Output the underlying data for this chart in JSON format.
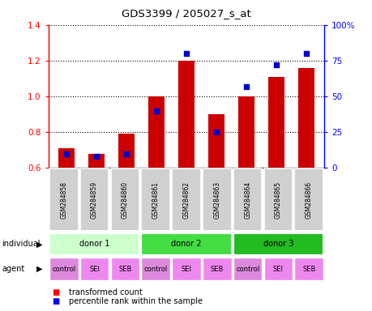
{
  "title": "GDS3399 / 205027_s_at",
  "samples": [
    "GSM284858",
    "GSM284859",
    "GSM284860",
    "GSM284861",
    "GSM284862",
    "GSM284863",
    "GSM284864",
    "GSM284865",
    "GSM284866"
  ],
  "transformed_count": [
    0.71,
    0.68,
    0.79,
    1.0,
    1.2,
    0.9,
    1.0,
    1.11,
    1.16
  ],
  "percentile_rank": [
    10,
    8,
    10,
    40,
    80,
    25,
    57,
    72,
    80
  ],
  "ylim_left": [
    0.6,
    1.4
  ],
  "ylim_right": [
    0,
    100
  ],
  "yticks_left": [
    0.6,
    0.8,
    1.0,
    1.2,
    1.4
  ],
  "yticks_right": [
    0,
    25,
    50,
    75,
    100
  ],
  "yticklabels_right": [
    "0",
    "25",
    "50",
    "75",
    "100%"
  ],
  "bar_color": "#cc0000",
  "dot_color": "#0000cc",
  "bar_bottom": 0.6,
  "donors": [
    {
      "label": "donor 1",
      "start": 0,
      "end": 3,
      "color": "#ccffcc"
    },
    {
      "label": "donor 2",
      "start": 3,
      "end": 6,
      "color": "#44dd44"
    },
    {
      "label": "donor 3",
      "start": 6,
      "end": 9,
      "color": "#22bb22"
    }
  ],
  "agents": [
    "control",
    "SEI",
    "SEB",
    "control",
    "SEI",
    "SEB",
    "control",
    "SEI",
    "SEB"
  ],
  "agent_colors": {
    "control": "#dd88dd",
    "SEI": "#ee88ee",
    "SEB": "#ee88ee"
  },
  "sample_bg": "#d0d0d0",
  "grid_color": "#000000",
  "label_individual": "individual",
  "label_agent": "agent",
  "legend_red": "transformed count",
  "legend_blue": "percentile rank within the sample"
}
